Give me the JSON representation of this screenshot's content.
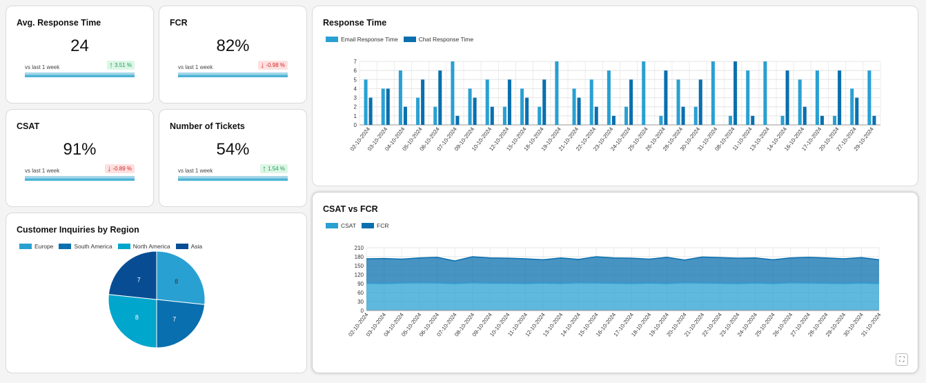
{
  "kpis": [
    {
      "title": "Avg. Response Time",
      "value": "24",
      "sub": "vs last 1 week",
      "change": "3.51 %",
      "direction": "up"
    },
    {
      "title": "FCR",
      "value": "82%",
      "sub": "vs last 1 week",
      "change": "-0.98 %",
      "direction": "down"
    },
    {
      "title": "CSAT",
      "value": "91%",
      "sub": "vs last 1 week",
      "change": "-0.89 %",
      "direction": "down"
    },
    {
      "title": "Number of Tickets",
      "value": "54%",
      "sub": "vs last 1 week",
      "change": "1.54 %",
      "direction": "up"
    }
  ],
  "region_chart": {
    "title": "Customer Inquiries by Region",
    "chart_data": {
      "type": "pie",
      "labels": [
        "Europe",
        "South America",
        "North America",
        "Asia"
      ],
      "values": [
        8,
        7,
        8,
        7
      ],
      "colors": [
        "#29a0d2",
        "#0a6fae",
        "#00a6cc",
        "#084d94"
      ]
    }
  },
  "response_chart": {
    "title": "Response Time",
    "chart_data": {
      "type": "bar",
      "categories": [
        "02-10-2024",
        "03-10-2024",
        "04-10-2024",
        "05-10-2024",
        "06-10-2024",
        "07-10-2024",
        "09-10-2024",
        "10-10-2024",
        "12-10-2024",
        "15-10-2024",
        "18-10-2024",
        "19-10-2024",
        "21-10-2024",
        "22-10-2024",
        "23-10-2024",
        "24-10-2024",
        "25-10-2024",
        "26-10-2024",
        "28-10-2024",
        "30-10-2024",
        "31-10-2024",
        "08-10-2024",
        "11-10-2024",
        "13-10-2024",
        "14-10-2024",
        "16-10-2024",
        "17-10-2024",
        "20-10-2024",
        "27-10-2024",
        "29-10-2024"
      ],
      "series": [
        {
          "name": "Email Response Time",
          "color": "#29a0d2",
          "values": [
            5,
            4,
            6,
            3,
            2,
            7,
            4,
            5,
            2,
            4,
            2,
            7,
            4,
            5,
            6,
            2,
            7,
            1,
            5,
            2,
            7,
            1,
            6,
            7,
            1,
            5,
            6,
            1,
            4,
            6
          ]
        },
        {
          "name": "Chat Response Time",
          "color": "#0a6fae",
          "values": [
            3,
            4,
            2,
            5,
            6,
            1,
            3,
            2,
            5,
            3,
            5,
            0,
            3,
            2,
            1,
            5,
            0,
            6,
            2,
            5,
            0,
            7,
            1,
            0,
            6,
            2,
            1,
            6,
            3,
            1
          ]
        }
      ],
      "ylim": [
        0,
        7
      ],
      "yticks": [
        0,
        1,
        2,
        3,
        4,
        5,
        6,
        7
      ]
    }
  },
  "csat_chart": {
    "title": "CSAT vs FCR",
    "chart_data": {
      "type": "area",
      "stacked": true,
      "categories": [
        "02-10-2024",
        "03-10-2024",
        "04-10-2024",
        "05-10-2024",
        "06-10-2024",
        "07-10-2024",
        "08-10-2024",
        "09-10-2024",
        "10-10-2024",
        "11-10-2024",
        "12-10-2024",
        "13-10-2024",
        "14-10-2024",
        "15-10-2024",
        "16-10-2024",
        "17-10-2024",
        "18-10-2024",
        "19-10-2024",
        "20-10-2024",
        "21-10-2024",
        "22-10-2024",
        "23-10-2024",
        "24-10-2024",
        "25-10-2024",
        "26-10-2024",
        "27-10-2024",
        "28-10-2024",
        "29-10-2024",
        "30-10-2024",
        "31-10-2024"
      ],
      "series": [
        {
          "name": "CSAT",
          "color": "#29a0d2",
          "values": [
            91,
            90,
            92,
            93,
            92,
            90,
            93,
            91,
            91,
            90,
            92,
            90,
            93,
            92,
            91,
            90,
            92,
            90,
            93,
            92,
            91,
            90,
            92,
            90,
            93,
            92,
            91,
            90,
            92,
            90
          ]
        },
        {
          "name": "FCR",
          "color": "#0a6fae",
          "values": [
            82,
            84,
            80,
            83,
            86,
            76,
            87,
            85,
            84,
            83,
            78,
            86,
            78,
            88,
            85,
            85,
            80,
            88,
            76,
            87,
            86,
            85,
            84,
            80,
            83,
            86,
            85,
            83,
            85,
            80
          ]
        }
      ],
      "ylim": [
        0,
        210
      ],
      "yticks": [
        0,
        30,
        60,
        90,
        120,
        150,
        180,
        210
      ]
    }
  }
}
